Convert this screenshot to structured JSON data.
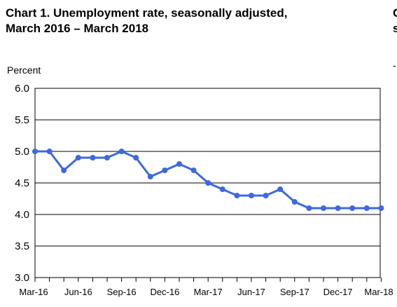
{
  "chart_data": {
    "type": "line",
    "title_line1": "Chart 1. Unemployment rate, seasonally adjusted,",
    "title_line2": "March 2016 – March 2018",
    "ylabel": "Percent",
    "ylim": [
      3.0,
      6.0
    ],
    "yticks": [
      "6.0",
      "5.5",
      "5.0",
      "4.5",
      "4.0",
      "3.5",
      "3.0"
    ],
    "xtick_labels": [
      "Mar-16",
      "Jun-16",
      "Sep-16",
      "Dec-16",
      "Mar-17",
      "Jun-17",
      "Sep-17",
      "Dec-17",
      "Mar-18"
    ],
    "grid": true,
    "series": [
      {
        "x": [
          "2016-03",
          "2016-04",
          "2016-05",
          "2016-06",
          "2016-07",
          "2016-08",
          "2016-09",
          "2016-10",
          "2016-11",
          "2016-12",
          "2017-01",
          "2017-02",
          "2017-03",
          "2017-04",
          "2017-05",
          "2017-06",
          "2017-07",
          "2017-08",
          "2017-09",
          "2017-10",
          "2017-11",
          "2017-12",
          "2018-01",
          "2018-02",
          "2018-03"
        ],
        "values": [
          5.0,
          5.0,
          4.7,
          4.9,
          4.9,
          4.9,
          5.0,
          4.9,
          4.6,
          4.7,
          4.8,
          4.7,
          4.5,
          4.4,
          4.3,
          4.3,
          4.3,
          4.4,
          4.2,
          4.1,
          4.1,
          4.1,
          4.1,
          4.1,
          4.1
        ],
        "color": "#3d68e0"
      }
    ]
  },
  "clipped_right": {
    "line1": "C",
    "line2": "s",
    "line3": "-"
  }
}
